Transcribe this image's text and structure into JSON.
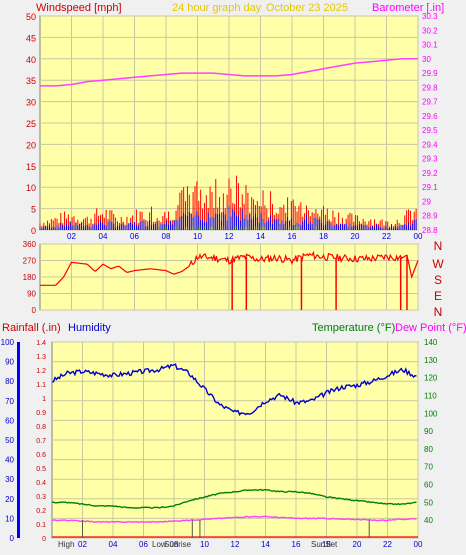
{
  "header": {
    "windspeed_label": "Windspeed [mph]",
    "graph_title": "24 hour graph day",
    "date": "October 23 2025",
    "barometer_label": "Barometer [.in]"
  },
  "mid_panel": {
    "compass": [
      "N",
      "W",
      "S",
      "E",
      "N"
    ]
  },
  "bottom_header": {
    "rainfall_label": "Rainfall (.in)",
    "humidity_label": "Humidity",
    "temperature_label": "Temperature (°F)",
    "dewpoint_label": "Dew Point (°F)"
  },
  "markers": {
    "high": "High",
    "low": "Low",
    "sunrise": "Sunrise",
    "sunset": "SunSet"
  },
  "colors": {
    "plot_bg": "#ffffa8",
    "wind": "#ff0000",
    "gust": "#0000ff",
    "calm": "#008000",
    "barometer": "#ff40ff",
    "direction": "#ff0000",
    "humidity": "#0000c8",
    "temperature": "#008000",
    "dewpoint": "#ff40ff",
    "rain": "#ff0000"
  },
  "chart_data": [
    {
      "type": "line",
      "title": "24 hour graph day",
      "x_ticks": [
        "02",
        "04",
        "06",
        "08",
        "10",
        "12",
        "14",
        "16",
        "18",
        "20",
        "22",
        "00"
      ],
      "y_left": {
        "label": "Windspeed [mph]",
        "ticks": [
          0,
          5,
          10,
          15,
          20,
          25,
          30,
          35,
          40,
          45,
          50
        ],
        "range": [
          0,
          50
        ]
      },
      "y_right": {
        "label": "Barometer [.in]",
        "ticks": [
          "28.8",
          "28.9",
          "29",
          "29.1",
          "29.2",
          "29.3",
          "29.4",
          "29.5",
          "29.6",
          "29.7",
          "29.8",
          "29.9",
          "30",
          "30.1",
          "30.2",
          "30.3"
        ],
        "range": [
          28.8,
          30.3
        ]
      },
      "series": [
        {
          "name": "Barometer [.in]",
          "x": [
            0,
            1,
            2,
            3,
            4,
            5,
            6,
            7,
            8,
            9,
            10,
            11,
            12,
            13,
            14,
            15,
            16,
            17,
            18,
            19,
            20,
            21,
            22,
            23,
            24
          ],
          "values": [
            29.81,
            29.81,
            29.82,
            29.84,
            29.85,
            29.86,
            29.87,
            29.88,
            29.89,
            29.9,
            29.9,
            29.9,
            29.89,
            29.88,
            29.88,
            29.88,
            29.89,
            29.91,
            29.93,
            29.95,
            29.97,
            29.98,
            29.99,
            30,
            30
          ]
        },
        {
          "x": [
            0,
            1,
            2,
            3,
            4,
            5,
            6,
            7,
            8,
            9,
            10,
            11,
            12,
            13,
            14,
            15,
            16,
            17,
            18,
            19,
            20,
            21,
            22,
            23,
            24
          ],
          "values": [
            2,
            3,
            4,
            3,
            5,
            3,
            4,
            5,
            4,
            8,
            10,
            10,
            12,
            9,
            8,
            7,
            6,
            7,
            5,
            4,
            3,
            3,
            2,
            3,
            6
          ]
        }
      ]
    },
    {
      "type": "line",
      "y_left": {
        "ticks": [
          0,
          90,
          180,
          270,
          360
        ],
        "range": [
          0,
          360
        ]
      },
      "series": [
        {
          "x": [
            0,
            1,
            1.5,
            2,
            3,
            3.5,
            4,
            4.5,
            5,
            5.5,
            6,
            7,
            8,
            8.5,
            9,
            9.5,
            10,
            11,
            12,
            13,
            14,
            15,
            16,
            17,
            18,
            19,
            20,
            21,
            22,
            23,
            23.3,
            23.6,
            24
          ],
          "values": [
            135,
            135,
            180,
            260,
            250,
            210,
            250,
            225,
            240,
            205,
            215,
            225,
            215,
            195,
            210,
            240,
            290,
            285,
            270,
            290,
            275,
            285,
            270,
            300,
            290,
            285,
            280,
            280,
            290,
            285,
            300,
            180,
            270
          ]
        }
      ]
    },
    {
      "type": "line",
      "x_ticks": [
        "02",
        "04",
        "06",
        "08",
        "10",
        "12",
        "14",
        "16",
        "18",
        "20",
        "22",
        "00"
      ],
      "y_humidity": {
        "label": "Humidity",
        "ticks": [
          0,
          10,
          20,
          30,
          40,
          50,
          60,
          70,
          80,
          90,
          100
        ],
        "range": [
          0,
          100
        ]
      },
      "y_rain": {
        "label": "Rainfall (.in)",
        "ticks": [
          0,
          0.1,
          0.2,
          0.3,
          0.4,
          0.5,
          0.6,
          0.7,
          0.8,
          0.9,
          1,
          1.1,
          1.2,
          1.3,
          1.4
        ],
        "range": [
          0,
          1.4
        ]
      },
      "y_temp": {
        "label": "Temperature (°F)",
        "ticks": [
          40,
          50,
          60,
          70,
          80,
          90,
          100,
          110,
          120,
          130,
          140
        ],
        "range": [
          30,
          140
        ]
      },
      "series": [
        {
          "name": "Humidity",
          "x": [
            0,
            1,
            2,
            3,
            4,
            5,
            6,
            7,
            8,
            9,
            10,
            11,
            12,
            13,
            14,
            15,
            16,
            17,
            18,
            19,
            20,
            21,
            22,
            23,
            24
          ],
          "values": [
            80,
            84,
            85,
            84,
            83,
            84,
            85,
            86,
            88,
            84,
            76,
            68,
            64,
            64,
            70,
            73,
            69,
            70,
            74,
            77,
            78,
            80,
            83,
            86,
            82
          ]
        },
        {
          "name": "Temperature (°F)",
          "x": [
            0,
            1,
            2,
            3,
            4,
            5,
            6,
            7,
            8,
            9,
            10,
            11,
            12,
            13,
            14,
            15,
            16,
            17,
            18,
            19,
            20,
            21,
            22,
            23,
            24
          ],
          "values": [
            50,
            50,
            49,
            48,
            48,
            47,
            47,
            47,
            48,
            51,
            53,
            55,
            56,
            57,
            57,
            56,
            56,
            55,
            53,
            52,
            51,
            50,
            49,
            49,
            50
          ]
        },
        {
          "name": "Dew Point (°F)",
          "x": [
            0,
            1,
            2,
            3,
            4,
            5,
            6,
            7,
            8,
            9,
            10,
            11,
            12,
            13,
            14,
            15,
            16,
            17,
            18,
            19,
            20,
            21,
            22,
            23,
            24
          ],
          "values": [
            40,
            40,
            39.5,
            39,
            39,
            39,
            39,
            39,
            39.5,
            40,
            40.5,
            41,
            41.5,
            42,
            42,
            41.5,
            41,
            41,
            41,
            40.5,
            40.5,
            40,
            40,
            40.5,
            41
          ]
        },
        {
          "name": "Rainfall (.in)",
          "x": [
            0,
            24
          ],
          "values": [
            0,
            0
          ]
        }
      ]
    }
  ]
}
